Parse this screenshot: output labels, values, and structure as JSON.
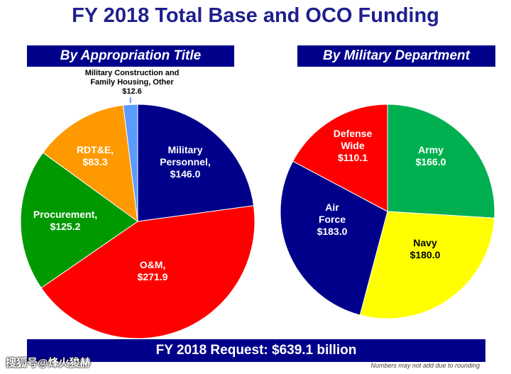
{
  "title": "FY 2018 Total Base and OCO Funding",
  "bottom_bar": "FY 2018 Request:  $639.1 billion",
  "footnote": "Numbers may not add due to rounding",
  "watermark": "搜狐号@烽火狻赫",
  "chart_data": [
    {
      "type": "pie",
      "title": "By Appropriation Title",
      "slices": [
        {
          "label": [
            "Military",
            "Personnel,"
          ],
          "value_label": "$146.0",
          "value": 146.0,
          "color": "#00008b",
          "text_color": "#ffffff"
        },
        {
          "label": [
            "O&M,"
          ],
          "value_label": "$271.9",
          "value": 271.9,
          "color": "#ff0000",
          "text_color": "#ffffff"
        },
        {
          "label": [
            "Procurement,"
          ],
          "value_label": "$125.2",
          "value": 125.2,
          "color": "#009900",
          "text_color": "#ffffff"
        },
        {
          "label": [
            "RDT&E,"
          ],
          "value_label": "$83.3",
          "value": 83.3,
          "color": "#ff9900",
          "text_color": "#ffffff"
        },
        {
          "label": [
            "Military Construction and",
            "Family Housing, Other"
          ],
          "value_label": "$12.6",
          "value": 12.6,
          "color": "#5b9bff",
          "text_color": "#000000",
          "callout": true
        }
      ]
    },
    {
      "type": "pie",
      "title": "By Military Department",
      "slices": [
        {
          "label": [
            "Army"
          ],
          "value_label": "$166.0",
          "value": 166.0,
          "color": "#00b050",
          "text_color": "#ffffff"
        },
        {
          "label": [
            "Navy"
          ],
          "value_label": "$180.0",
          "value": 180.0,
          "color": "#ffff00",
          "text_color": "#000000"
        },
        {
          "label": [
            "Air",
            "Force"
          ],
          "value_label": "$183.0",
          "value": 183.0,
          "color": "#00008b",
          "text_color": "#ffffff"
        },
        {
          "label": [
            "Defense",
            "Wide"
          ],
          "value_label": "$110.1",
          "value": 110.1,
          "color": "#ff0000",
          "text_color": "#ffffff"
        }
      ]
    }
  ]
}
